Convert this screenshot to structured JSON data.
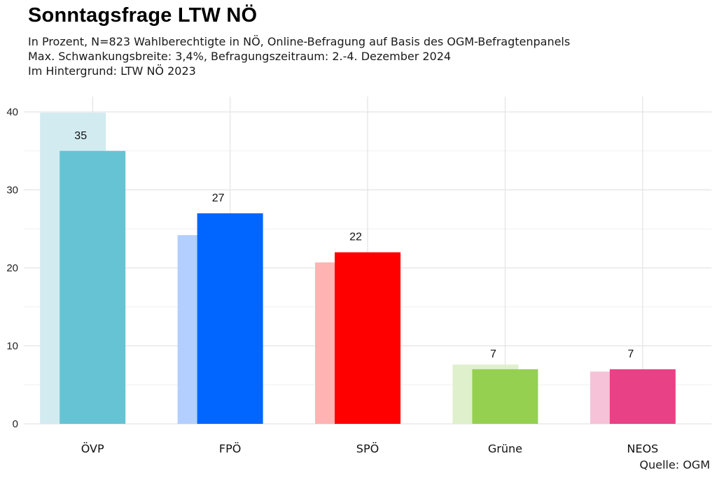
{
  "header": {
    "title": "Sonntagsfrage LTW NÖ",
    "subtitle_lines": [
      "In Prozent, N=823 Wahlberechtigte in NÖ, Online-Befragung auf Basis des OGM-Befragtenpanels",
      "Max. Schwankungsbreite: 3,4%, Befragungszeitraum: 2.-4. Dezember 2024",
      "Im Hintergrund: LTW NÖ 2023"
    ]
  },
  "source": "Quelle: OGM",
  "chart_data": {
    "type": "bar",
    "categories": [
      "ÖVP",
      "FPÖ",
      "SPÖ",
      "Grüne",
      "NEOS"
    ],
    "series": [
      {
        "values": [
          39.9,
          24.2,
          20.7,
          7.6,
          6.7
        ],
        "role": "background"
      },
      {
        "values": [
          35,
          27,
          22,
          7,
          7
        ],
        "role": "foreground"
      }
    ],
    "data_labels": [
      "35",
      "27",
      "22",
      "7",
      "7"
    ],
    "colors": {
      "foreground": [
        "#66c3d3",
        "#0066ff",
        "#ff0000",
        "#95d050",
        "#e84185"
      ],
      "background": [
        "#d2ebf0",
        "#b3cfff",
        "#ffb3b3",
        "#dff0cc",
        "#f6c2d8"
      ]
    },
    "ylim": [
      0,
      40
    ],
    "yticks": [
      0,
      10,
      20,
      30,
      40
    ],
    "grid": true,
    "legend": "none"
  }
}
